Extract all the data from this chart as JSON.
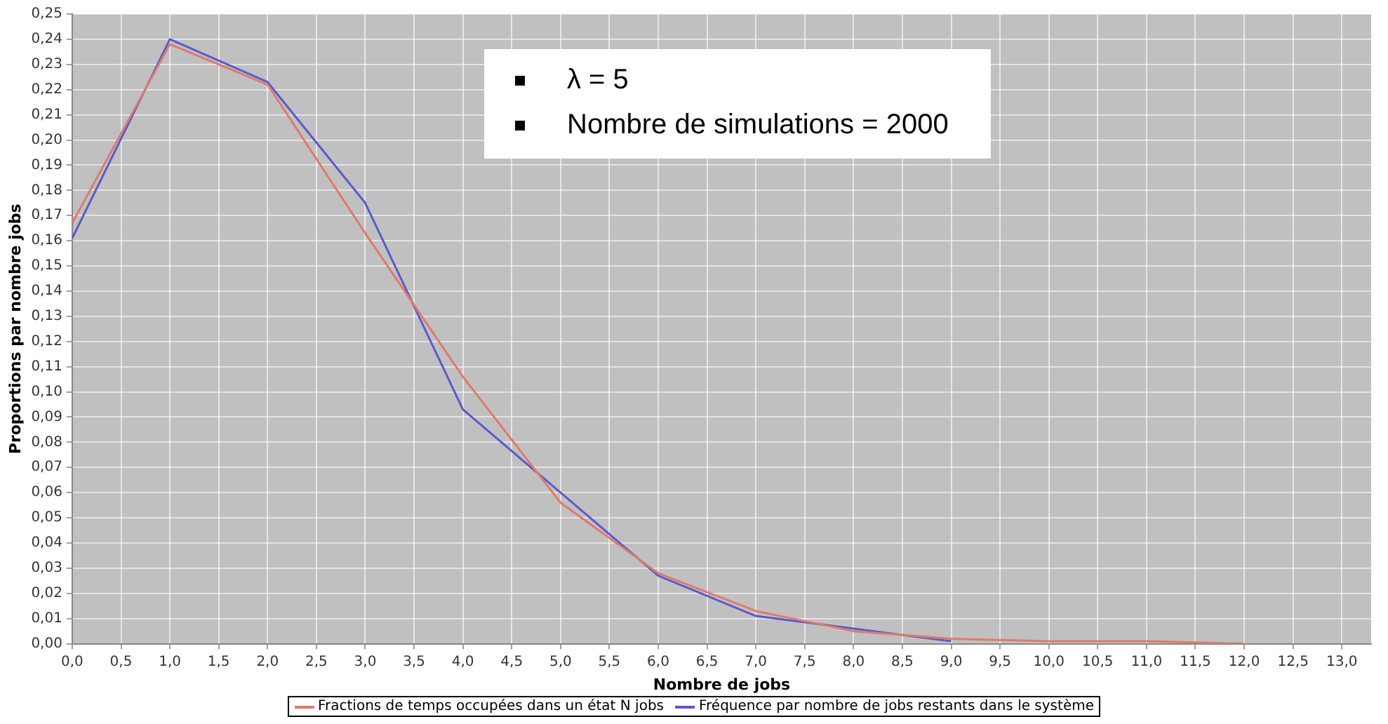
{
  "chart_data": {
    "type": "line",
    "xlabel": "Nombre de jobs",
    "ylabel": "Proportions par nombre jobs",
    "annotations": [
      "λ = 5",
      "Nombre de simulations = 2000"
    ],
    "series": [
      {
        "name": "Fractions de temps occupées dans un état N jobs",
        "color": "#e07a6a",
        "x": [
          0,
          1,
          2,
          3,
          4,
          5,
          6,
          7,
          8,
          9,
          10,
          11,
          12
        ],
        "values": [
          0.167,
          0.238,
          0.222,
          0.163,
          0.106,
          0.056,
          0.028,
          0.013,
          0.005,
          0.002,
          0.001,
          0.001,
          0.0
        ]
      },
      {
        "name": "Fréquence par nombre de jobs restants dans le système",
        "color": "#5a5ad0",
        "x": [
          0,
          1,
          2,
          3,
          4,
          5,
          6,
          7,
          8,
          9
        ],
        "values": [
          0.161,
          0.24,
          0.223,
          0.175,
          0.093,
          0.06,
          0.027,
          0.011,
          0.006,
          0.001
        ]
      }
    ],
    "xlim": [
      0,
      13.3
    ],
    "xticks": [
      {
        "value": 0,
        "label": "0,0"
      },
      {
        "value": 0.5,
        "label": "0,5"
      },
      {
        "value": 1,
        "label": "1,0"
      },
      {
        "value": 1.5,
        "label": "1,5"
      },
      {
        "value": 2,
        "label": "2,0"
      },
      {
        "value": 2.5,
        "label": "2,5"
      },
      {
        "value": 3,
        "label": "3,0"
      },
      {
        "value": 3.5,
        "label": "3,5"
      },
      {
        "value": 4,
        "label": "4,0"
      },
      {
        "value": 4.5,
        "label": "4,5"
      },
      {
        "value": 5,
        "label": "5,0"
      },
      {
        "value": 5.5,
        "label": "5,5"
      },
      {
        "value": 6,
        "label": "6,0"
      },
      {
        "value": 6.5,
        "label": "6,5"
      },
      {
        "value": 7,
        "label": "7,0"
      },
      {
        "value": 7.5,
        "label": "7,5"
      },
      {
        "value": 8,
        "label": "8,0"
      },
      {
        "value": 8.5,
        "label": "8,5"
      },
      {
        "value": 9,
        "label": "9,0"
      },
      {
        "value": 9.5,
        "label": "9,5"
      },
      {
        "value": 10,
        "label": "10,0"
      },
      {
        "value": 10.5,
        "label": "10,5"
      },
      {
        "value": 11,
        "label": "11,0"
      },
      {
        "value": 11.5,
        "label": "11,5"
      },
      {
        "value": 12,
        "label": "12,0"
      },
      {
        "value": 12.5,
        "label": "12,5"
      },
      {
        "value": 13,
        "label": "13,0"
      }
    ],
    "ylim": [
      0,
      0.25
    ],
    "yticks": [
      {
        "value": 0,
        "label": "0,00"
      },
      {
        "value": 0.01,
        "label": "0,01"
      },
      {
        "value": 0.02,
        "label": "0,02"
      },
      {
        "value": 0.03,
        "label": "0,03"
      },
      {
        "value": 0.04,
        "label": "0,04"
      },
      {
        "value": 0.05,
        "label": "0,05"
      },
      {
        "value": 0.06,
        "label": "0,06"
      },
      {
        "value": 0.07,
        "label": "0,07"
      },
      {
        "value": 0.08,
        "label": "0,08"
      },
      {
        "value": 0.09,
        "label": "0,09"
      },
      {
        "value": 0.1,
        "label": "0,10"
      },
      {
        "value": 0.11,
        "label": "0,11"
      },
      {
        "value": 0.12,
        "label": "0,12"
      },
      {
        "value": 0.13,
        "label": "0,13"
      },
      {
        "value": 0.14,
        "label": "0,14"
      },
      {
        "value": 0.15,
        "label": "0,15"
      },
      {
        "value": 0.16,
        "label": "0,16"
      },
      {
        "value": 0.17,
        "label": "0,17"
      },
      {
        "value": 0.18,
        "label": "0,18"
      },
      {
        "value": 0.19,
        "label": "0,19"
      },
      {
        "value": 0.2,
        "label": "0,20"
      },
      {
        "value": 0.21,
        "label": "0,21"
      },
      {
        "value": 0.22,
        "label": "0,22"
      },
      {
        "value": 0.23,
        "label": "0,23"
      },
      {
        "value": 0.24,
        "label": "0,24"
      },
      {
        "value": 0.25,
        "label": "0,25"
      }
    ],
    "grid": true,
    "legend": "bottom",
    "marker": "none",
    "line_style": "solid"
  }
}
